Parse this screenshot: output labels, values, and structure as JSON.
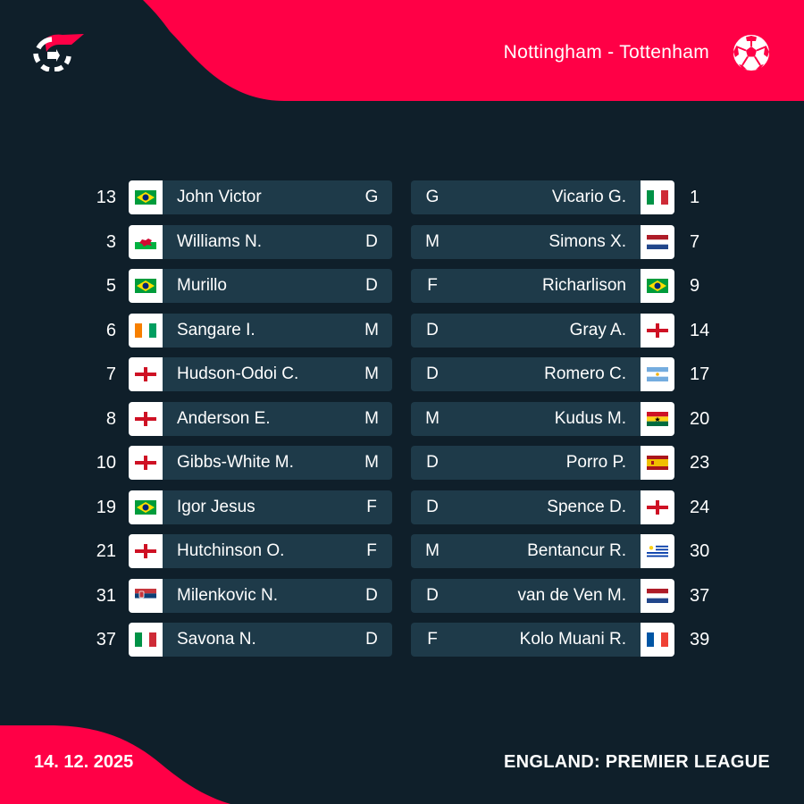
{
  "header": {
    "match_title": "Nottingham - Tottenham",
    "logo_icon": "app-logo-icon",
    "sport_icon": "football-icon"
  },
  "footer": {
    "date": "14. 12. 2025",
    "league": "ENGLAND: PREMIER LEAGUE"
  },
  "colors": {
    "accent": "#ff0046",
    "background": "#0f1f2a",
    "card": "#1e3a49",
    "text": "#ffffff"
  },
  "home_lineup": [
    {
      "number": "13",
      "name": "John Victor",
      "position": "G",
      "flag": "brazil"
    },
    {
      "number": "3",
      "name": "Williams N.",
      "position": "D",
      "flag": "wales"
    },
    {
      "number": "5",
      "name": "Murillo",
      "position": "D",
      "flag": "brazil"
    },
    {
      "number": "6",
      "name": "Sangare I.",
      "position": "M",
      "flag": "ivory-coast"
    },
    {
      "number": "7",
      "name": "Hudson-Odoi C.",
      "position": "M",
      "flag": "england"
    },
    {
      "number": "8",
      "name": "Anderson E.",
      "position": "M",
      "flag": "england"
    },
    {
      "number": "10",
      "name": "Gibbs-White M.",
      "position": "M",
      "flag": "england"
    },
    {
      "number": "19",
      "name": "Igor Jesus",
      "position": "F",
      "flag": "brazil"
    },
    {
      "number": "21",
      "name": "Hutchinson O.",
      "position": "F",
      "flag": "england"
    },
    {
      "number": "31",
      "name": "Milenkovic N.",
      "position": "D",
      "flag": "serbia"
    },
    {
      "number": "37",
      "name": "Savona N.",
      "position": "D",
      "flag": "italy"
    }
  ],
  "away_lineup": [
    {
      "number": "1",
      "name": "Vicario G.",
      "position": "G",
      "flag": "italy"
    },
    {
      "number": "7",
      "name": "Simons X.",
      "position": "M",
      "flag": "netherlands"
    },
    {
      "number": "9",
      "name": "Richarlison",
      "position": "F",
      "flag": "brazil"
    },
    {
      "number": "14",
      "name": "Gray A.",
      "position": "D",
      "flag": "england"
    },
    {
      "number": "17",
      "name": "Romero C.",
      "position": "D",
      "flag": "argentina"
    },
    {
      "number": "20",
      "name": "Kudus M.",
      "position": "M",
      "flag": "ghana"
    },
    {
      "number": "23",
      "name": "Porro P.",
      "position": "D",
      "flag": "spain"
    },
    {
      "number": "24",
      "name": "Spence D.",
      "position": "D",
      "flag": "england"
    },
    {
      "number": "30",
      "name": "Bentancur R.",
      "position": "M",
      "flag": "uruguay"
    },
    {
      "number": "37",
      "name": "van de Ven M.",
      "position": "D",
      "flag": "netherlands"
    },
    {
      "number": "39",
      "name": "Kolo Muani R.",
      "position": "F",
      "flag": "france"
    }
  ]
}
